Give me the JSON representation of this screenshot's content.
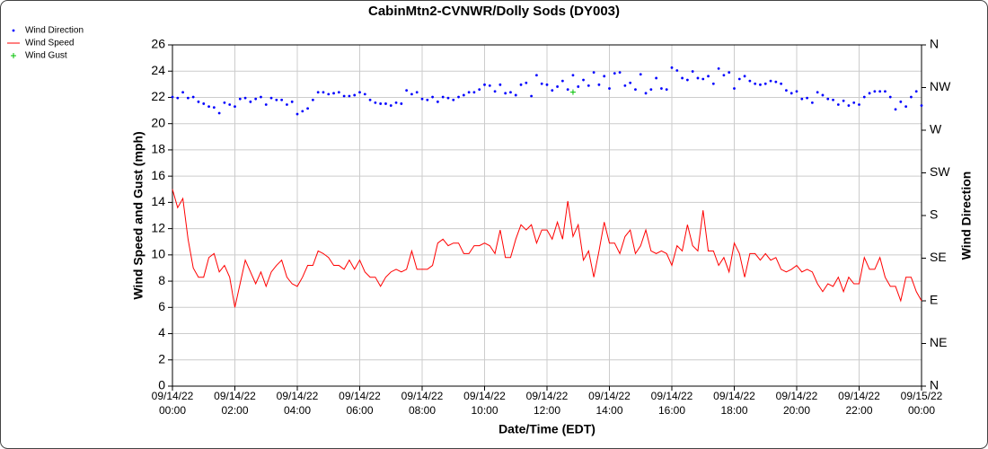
{
  "chart_data": {
    "type": "line",
    "title": "CabinMtn2-CVNWR/Dolly Sods (DY003)",
    "x_label": "Date/Time (EDT)",
    "y_label": "Wind Speed and Gust (mph)",
    "y2_label": "Wind Direction",
    "legend": "top-left",
    "grid": true,
    "xlim": [
      "09/14/22 00:00",
      "09/15/22 00:00"
    ],
    "xticks": [
      "09/14/22 00:00",
      "09/14/22 02:00",
      "09/14/22 04:00",
      "09/14/22 06:00",
      "09/14/22 08:00",
      "09/14/22 10:00",
      "09/14/22 12:00",
      "09/14/22 14:00",
      "09/14/22 16:00",
      "09/14/22 18:00",
      "09/14/22 20:00",
      "09/14/22 22:00",
      "09/15/22 00:00"
    ],
    "ylim": [
      0,
      26
    ],
    "yticks": [
      0,
      2,
      4,
      6,
      8,
      10,
      12,
      14,
      16,
      18,
      20,
      22,
      24,
      26
    ],
    "y2lim": [
      0,
      360
    ],
    "y2ticks": [
      {
        "value": 0,
        "label": "N"
      },
      {
        "value": 45,
        "label": "NE"
      },
      {
        "value": 90,
        "label": "E"
      },
      {
        "value": 135,
        "label": "SE"
      },
      {
        "value": 180,
        "label": "S"
      },
      {
        "value": 225,
        "label": "SW"
      },
      {
        "value": 270,
        "label": "W"
      },
      {
        "value": 315,
        "label": "NW"
      },
      {
        "value": 360,
        "label": "N"
      }
    ],
    "x": [
      "09/14/22 00:00",
      "09/14/22 00:10",
      "09/14/22 00:20",
      "09/14/22 00:30",
      "09/14/22 00:40",
      "09/14/22 00:50",
      "09/14/22 01:00",
      "09/14/22 01:10",
      "09/14/22 01:20",
      "09/14/22 01:30",
      "09/14/22 01:40",
      "09/14/22 01:50",
      "09/14/22 02:00",
      "09/14/22 02:10",
      "09/14/22 02:20",
      "09/14/22 02:30",
      "09/14/22 02:40",
      "09/14/22 02:50",
      "09/14/22 03:00",
      "09/14/22 03:10",
      "09/14/22 03:20",
      "09/14/22 03:30",
      "09/14/22 03:40",
      "09/14/22 03:50",
      "09/14/22 04:00",
      "09/14/22 04:10",
      "09/14/22 04:20",
      "09/14/22 04:30",
      "09/14/22 04:40",
      "09/14/22 04:50",
      "09/14/22 05:00",
      "09/14/22 05:10",
      "09/14/22 05:20",
      "09/14/22 05:30",
      "09/14/22 05:40",
      "09/14/22 05:50",
      "09/14/22 06:00",
      "09/14/22 06:10",
      "09/14/22 06:20",
      "09/14/22 06:30",
      "09/14/22 06:40",
      "09/14/22 06:50",
      "09/14/22 07:00",
      "09/14/22 07:10",
      "09/14/22 07:20",
      "09/14/22 07:30",
      "09/14/22 07:40",
      "09/14/22 07:50",
      "09/14/22 08:00",
      "09/14/22 08:10",
      "09/14/22 08:20",
      "09/14/22 08:30",
      "09/14/22 08:40",
      "09/14/22 08:50",
      "09/14/22 09:00",
      "09/14/22 09:10",
      "09/14/22 09:20",
      "09/14/22 09:30",
      "09/14/22 09:40",
      "09/14/22 09:50",
      "09/14/22 10:00",
      "09/14/22 10:10",
      "09/14/22 10:20",
      "09/14/22 10:30",
      "09/14/22 10:40",
      "09/14/22 10:50",
      "09/14/22 11:00",
      "09/14/22 11:10",
      "09/14/22 11:20",
      "09/14/22 11:30",
      "09/14/22 11:40",
      "09/14/22 11:50",
      "09/14/22 12:00",
      "09/14/22 12:10",
      "09/14/22 12:20",
      "09/14/22 12:30",
      "09/14/22 12:40",
      "09/14/22 12:50",
      "09/14/22 13:00",
      "09/14/22 13:10",
      "09/14/22 13:20",
      "09/14/22 13:30",
      "09/14/22 13:40",
      "09/14/22 13:50",
      "09/14/22 14:00",
      "09/14/22 14:10",
      "09/14/22 14:20",
      "09/14/22 14:30",
      "09/14/22 14:40",
      "09/14/22 14:50",
      "09/14/22 15:00",
      "09/14/22 15:10",
      "09/14/22 15:20",
      "09/14/22 15:30",
      "09/14/22 15:40",
      "09/14/22 15:50",
      "09/14/22 16:00",
      "09/14/22 16:10",
      "09/14/22 16:20",
      "09/14/22 16:30",
      "09/14/22 16:40",
      "09/14/22 16:50",
      "09/14/22 17:00",
      "09/14/22 17:10",
      "09/14/22 17:20",
      "09/14/22 17:30",
      "09/14/22 17:40",
      "09/14/22 17:50",
      "09/14/22 18:00",
      "09/14/22 18:10",
      "09/14/22 18:20",
      "09/14/22 18:30",
      "09/14/22 18:40",
      "09/14/22 18:50",
      "09/14/22 19:00",
      "09/14/22 19:10",
      "09/14/22 19:20",
      "09/14/22 19:30",
      "09/14/22 19:40",
      "09/14/22 19:50",
      "09/14/22 20:00",
      "09/14/22 20:10",
      "09/14/22 20:20",
      "09/14/22 20:30",
      "09/14/22 20:40",
      "09/14/22 20:50",
      "09/14/22 21:00",
      "09/14/22 21:10",
      "09/14/22 21:20",
      "09/14/22 21:30",
      "09/14/22 21:40",
      "09/14/22 21:50",
      "09/14/22 22:00",
      "09/14/22 22:10",
      "09/14/22 22:20",
      "09/14/22 22:30",
      "09/14/22 22:40",
      "09/14/22 22:50",
      "09/14/22 23:00",
      "09/14/22 23:10",
      "09/14/22 23:20",
      "09/14/22 23:30",
      "09/14/22 23:40",
      "09/14/22 23:50",
      "09/15/22 00:00"
    ],
    "series": [
      {
        "name": "Wind Direction",
        "type": "scatter",
        "axis": "y2",
        "color": "#0000ff",
        "values": [
          305,
          304,
          310,
          304,
          305,
          300,
          298,
          295,
          294,
          288,
          299,
          297,
          295,
          303,
          304,
          300,
          303,
          305,
          297,
          304,
          302,
          302,
          297,
          300,
          287,
          290,
          293,
          302,
          310,
          310,
          308,
          309,
          310,
          306,
          306,
          307,
          310,
          308,
          302,
          299,
          298,
          298,
          296,
          299,
          298,
          312,
          308,
          310,
          303,
          302,
          305,
          300,
          305,
          304,
          302,
          305,
          307,
          310,
          310,
          313,
          318,
          317,
          311,
          318,
          309,
          310,
          307,
          318,
          320,
          306,
          328,
          319,
          318,
          312,
          316,
          322,
          313,
          328,
          316,
          323,
          317,
          331,
          318,
          327,
          314,
          330,
          331,
          317,
          320,
          313,
          329,
          309,
          313,
          325,
          314,
          313,
          336,
          333,
          325,
          323,
          332,
          325,
          324,
          327,
          319,
          335,
          328,
          331,
          314,
          324,
          327,
          322,
          319,
          318,
          319,
          322,
          321,
          319,
          312,
          309,
          311,
          303,
          304,
          299,
          310,
          307,
          303,
          302,
          297,
          301,
          296,
          299,
          297,
          305,
          309,
          311,
          311,
          311,
          305,
          292,
          300,
          295,
          305,
          311,
          296
        ]
      },
      {
        "name": "Wind Speed",
        "type": "line",
        "color": "#ff0000",
        "values": [
          15.0,
          13.6,
          14.3,
          11.2,
          9.0,
          8.3,
          8.3,
          9.8,
          10.1,
          8.7,
          9.2,
          8.3,
          6.0,
          7.8,
          9.6,
          8.7,
          7.8,
          8.7,
          7.6,
          8.7,
          9.2,
          9.6,
          8.3,
          7.8,
          7.6,
          8.3,
          9.2,
          9.2,
          10.3,
          10.1,
          9.8,
          9.2,
          9.2,
          8.9,
          9.6,
          8.9,
          9.6,
          8.7,
          8.3,
          8.3,
          7.6,
          8.3,
          8.7,
          8.9,
          8.7,
          8.9,
          10.3,
          8.9,
          8.9,
          8.9,
          9.2,
          10.9,
          11.2,
          10.7,
          10.9,
          10.9,
          10.1,
          10.1,
          10.7,
          10.7,
          10.9,
          10.7,
          10.1,
          11.9,
          9.8,
          9.8,
          11.2,
          12.3,
          11.9,
          12.3,
          10.9,
          11.9,
          11.9,
          11.2,
          12.5,
          11.2,
          14.1,
          11.4,
          12.3,
          9.6,
          10.3,
          8.3,
          10.3,
          12.5,
          10.9,
          10.9,
          10.1,
          11.4,
          11.9,
          10.1,
          10.7,
          11.9,
          10.3,
          10.1,
          10.3,
          10.1,
          9.2,
          10.7,
          10.3,
          12.3,
          10.7,
          10.3,
          13.4,
          10.3,
          10.3,
          9.2,
          9.8,
          8.7,
          10.9,
          10.1,
          8.3,
          10.1,
          10.1,
          9.6,
          10.1,
          9.6,
          9.8,
          8.9,
          8.7,
          8.9,
          9.2,
          8.7,
          8.9,
          8.7,
          7.8,
          7.2,
          7.8,
          7.6,
          8.3,
          7.2,
          8.3,
          7.8,
          7.8,
          9.8,
          8.9,
          8.9,
          9.8,
          8.3,
          7.6,
          7.6,
          6.5,
          8.3,
          8.3,
          7.2,
          6.5
        ]
      },
      {
        "name": "Wind Gust",
        "type": "plus",
        "color": "#00c000",
        "x": [
          "09/14/22 12:50"
        ],
        "values": [
          22.4
        ]
      }
    ]
  }
}
